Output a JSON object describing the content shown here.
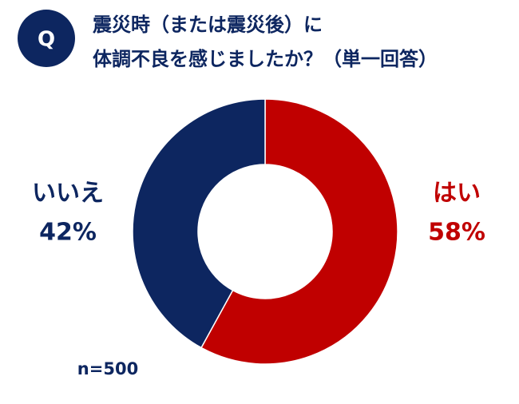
{
  "chart_data": {
    "type": "donut",
    "badge": "Q",
    "title": [
      "震災時（または震災後）に",
      "体調不良を感じましたか？（単一回答）"
    ],
    "categories": [
      "はい",
      "いいえ"
    ],
    "values": [
      58,
      42
    ],
    "value_labels": [
      "58%",
      "42%"
    ],
    "colors": [
      "#c00000",
      "#0d2660"
    ],
    "note": "n=500"
  }
}
